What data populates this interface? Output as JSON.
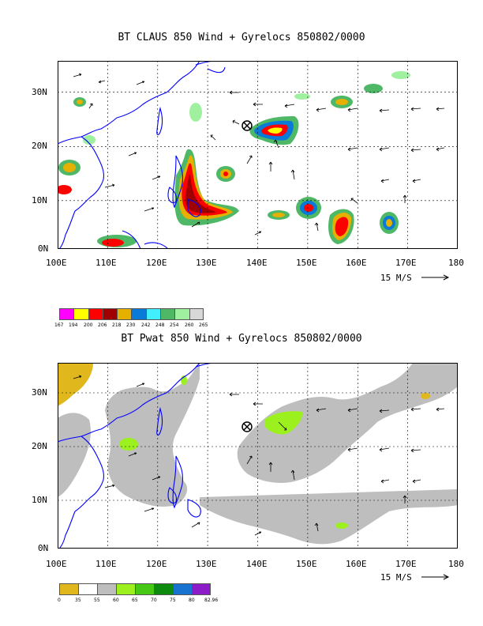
{
  "map1": {
    "title": "BT CLAUS 850 Wind + Gyrelocs 850802/0000",
    "lat_labels": [
      "30N",
      "20N",
      "10N",
      "0N"
    ],
    "lon_labels": [
      "100E",
      "110E",
      "120E",
      "130E",
      "140E",
      "150E",
      "160E",
      "170E",
      "180"
    ],
    "vector_label": "15 M/S",
    "colorbar_colors": [
      "#ff00ff",
      "#ffff00",
      "#ff0000",
      "#a00000",
      "#e6b000",
      "#0a7ad8",
      "#40f0ff",
      "#4fb866",
      "#9ff09f",
      "#d8d8d8"
    ],
    "colorbar_labels": [
      "167",
      "194",
      "200",
      "206",
      "218",
      "230",
      "242",
      "248",
      "254",
      "260",
      "265"
    ]
  },
  "map2": {
    "title": "BT Pwat 850 Wind + Gyrelocs 850802/0000",
    "lat_labels": [
      "30N",
      "20N",
      "10N",
      "0N"
    ],
    "lon_labels": [
      "100E",
      "110E",
      "120E",
      "130E",
      "140E",
      "150E",
      "160E",
      "170E",
      "180"
    ],
    "vector_label": "15 M/S",
    "colorbar_colors": [
      "#e0b81e",
      "#ffffff",
      "#bebebe",
      "#9cf01e",
      "#46c814",
      "#0e8a0e",
      "#1873d0",
      "#8c1cc8"
    ],
    "colorbar_labels": [
      "0",
      "35",
      "55",
      "60",
      "65",
      "70",
      "75",
      "80",
      "82.96"
    ]
  }
}
